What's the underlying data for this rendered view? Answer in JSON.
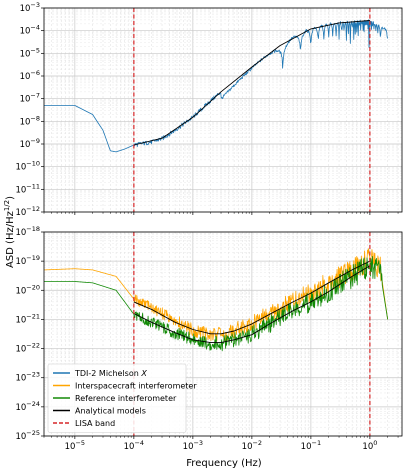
{
  "chart_data": [
    {
      "type": "line",
      "panel": "top",
      "xscale": "log",
      "yscale": "log",
      "xlim": [
        3e-06,
        3.5
      ],
      "ylim": [
        1e-12,
        0.001
      ],
      "grid": true,
      "xtick_values": [
        1e-05,
        0.0001,
        0.001,
        0.01,
        0.1,
        1
      ],
      "ytick_values": [
        1e-12,
        1e-11,
        1e-10,
        1e-09,
        1e-08,
        1e-07,
        1e-06,
        1e-05,
        0.0001,
        0.001
      ],
      "ytick_labels": [
        {
          "base": "10",
          "exp": "−12"
        },
        {
          "base": "10",
          "exp": "−11"
        },
        {
          "base": "10",
          "exp": "−10"
        },
        {
          "base": "10",
          "exp": "−9"
        },
        {
          "base": "10",
          "exp": "−8"
        },
        {
          "base": "10",
          "exp": "−7"
        },
        {
          "base": "10",
          "exp": "−6"
        },
        {
          "base": "10",
          "exp": "−5"
        },
        {
          "base": "10",
          "exp": "−4"
        },
        {
          "base": "10",
          "exp": "−3"
        }
      ],
      "series": [
        {
          "name": "TDI-2 Michelson X",
          "color": "#1f77b4",
          "x": [
            3e-06,
            1e-05,
            2e-05,
            3e-05,
            4e-05,
            5e-05,
            7e-05,
            0.0001,
            0.0002,
            0.0003,
            0.0005,
            0.001,
            0.002,
            0.005,
            0.01,
            0.02,
            0.03,
            0.05,
            0.07,
            0.1,
            0.2,
            0.3,
            0.5,
            0.7,
            1.0,
            1.5,
            2.0
          ],
          "y": [
            5e-08,
            5e-08,
            2e-08,
            4e-09,
            5e-10,
            4.5e-10,
            6e-10,
            9e-10,
            1.2e-09,
            1.7e-09,
            4e-09,
            1.5e-08,
            8e-08,
            6e-07,
            2.5e-06,
            1e-05,
            2.2e-05,
            5e-05,
            8e-05,
            0.00012,
            0.0002,
            0.00022,
            0.00025,
            0.00027,
            0.00028,
            0.00016,
            0.0001
          ]
        },
        {
          "name": "Analytical models",
          "color": "#000000",
          "x": [
            0.0001,
            0.0003,
            0.001,
            0.003,
            0.01,
            0.03,
            0.1,
            0.3,
            1.0
          ],
          "y": [
            9e-10,
            1.8e-09,
            1.5e-08,
            2e-07,
            2.5e-06,
            2.2e-05,
            0.00012,
            0.00022,
            0.00028
          ]
        }
      ],
      "lisa_band": [
        0.0001,
        1.0
      ]
    },
    {
      "type": "line",
      "panel": "bottom",
      "xscale": "log",
      "yscale": "log",
      "xlim": [
        3e-06,
        3.5
      ],
      "ylim": [
        1e-25,
        1e-18
      ],
      "grid": true,
      "xlabel": "Frequency (Hz)",
      "ylabel": "ASD (Hz/Hz^1/2)",
      "xtick_values": [
        1e-05,
        0.0001,
        0.001,
        0.01,
        0.1,
        1
      ],
      "xtick_labels": [
        {
          "base": "10",
          "exp": "−5"
        },
        {
          "base": "10",
          "exp": "−4"
        },
        {
          "base": "10",
          "exp": "−3"
        },
        {
          "base": "10",
          "exp": "−2"
        },
        {
          "base": "10",
          "exp": "−1"
        },
        {
          "base": "10",
          "exp": "0"
        }
      ],
      "ytick_values": [
        1e-25,
        1e-24,
        1e-23,
        1e-22,
        1e-21,
        1e-20,
        1e-19,
        1e-18
      ],
      "ytick_labels": [
        {
          "base": "10",
          "exp": "−25"
        },
        {
          "base": "10",
          "exp": "−24"
        },
        {
          "base": "10",
          "exp": "−23"
        },
        {
          "base": "10",
          "exp": "−22"
        },
        {
          "base": "10",
          "exp": "−21"
        },
        {
          "base": "10",
          "exp": "−20"
        },
        {
          "base": "10",
          "exp": "−19"
        },
        {
          "base": "10",
          "exp": "−18"
        }
      ],
      "series": [
        {
          "name": "Interspacecraft interferometer",
          "color": "#ffa500",
          "x": [
            3e-06,
            1e-05,
            2e-05,
            5e-05,
            0.0001,
            0.0002,
            0.0005,
            0.001,
            0.002,
            0.003,
            0.005,
            0.01,
            0.02,
            0.05,
            0.1,
            0.2,
            0.5,
            1.0,
            1.5,
            2.0
          ],
          "y": [
            5e-20,
            5.5e-20,
            5e-20,
            3e-20,
            5e-21,
            2.5e-21,
            9e-22,
            4.5e-22,
            3e-22,
            3e-22,
            4e-22,
            7e-22,
            1.5e-21,
            4e-21,
            8e-21,
            1.8e-20,
            5e-20,
            1.2e-19,
            6e-20,
            1e-21
          ]
        },
        {
          "name": "Reference interferometer",
          "color": "#138a07",
          "x": [
            3e-06,
            1e-05,
            2e-05,
            5e-05,
            0.0001,
            0.0002,
            0.0005,
            0.001,
            0.002,
            0.003,
            0.005,
            0.01,
            0.02,
            0.05,
            0.1,
            0.2,
            0.5,
            1.0,
            1.5,
            2.0
          ],
          "y": [
            2e-20,
            2e-20,
            1.8e-20,
            1e-20,
            1.5e-21,
            8e-22,
            3.5e-22,
            2e-22,
            1.5e-22,
            1.5e-22,
            2e-22,
            3e-22,
            7e-22,
            2e-21,
            4e-21,
            9e-21,
            3e-20,
            7e-20,
            4e-20,
            1e-21
          ]
        },
        {
          "name": "Analytical models",
          "color": "#000000",
          "x": [
            0.0001,
            0.0002,
            0.0005,
            0.001,
            0.002,
            0.003,
            0.005,
            0.01,
            0.02,
            0.05,
            0.1,
            0.2,
            0.5,
            1.0
          ],
          "y": [
            4e-21,
            2.2e-21,
            8e-22,
            4.5e-22,
            3.2e-22,
            3.2e-22,
            4e-22,
            7e-22,
            1.5e-21,
            4e-21,
            8e-21,
            1.8e-20,
            5e-20,
            1e-19
          ]
        },
        {
          "name": "Analytical models (reference)",
          "color": "#000000",
          "x": [
            0.0001,
            0.0002,
            0.0005,
            0.001,
            0.002,
            0.003,
            0.005,
            0.01,
            0.02,
            0.05,
            0.1,
            0.2,
            0.5,
            1.0
          ],
          "y": [
            1.6e-21,
            8e-22,
            3.5e-22,
            2e-22,
            1.6e-22,
            1.6e-22,
            2e-22,
            3e-22,
            7e-22,
            2e-21,
            4e-21,
            9e-21,
            3e-20,
            7e-20
          ]
        }
      ],
      "lisa_band": [
        0.0001,
        1.0
      ],
      "legend": {
        "placement": "lower-left",
        "entries": [
          {
            "label_pre": "TDI-2 Michelson ",
            "label_italic": "X",
            "color": "#1f77b4",
            "style": "solid"
          },
          {
            "label_pre": "Interspacecraft interferometer",
            "label_italic": "",
            "color": "#ffa500",
            "style": "solid"
          },
          {
            "label_pre": "Reference interferometer",
            "label_italic": "",
            "color": "#138a07",
            "style": "solid"
          },
          {
            "label_pre": "Analytical models",
            "label_italic": "",
            "color": "#000000",
            "style": "solid"
          },
          {
            "label_pre": "LISA band",
            "label_italic": "",
            "color": "#d62728",
            "style": "dashed"
          }
        ]
      }
    }
  ],
  "ylabel_text": {
    "pre": "ASD (Hz/Hz",
    "sup": "1/2",
    "post": ")"
  },
  "xlabel_text": "Frequency (Hz)",
  "lisa_band_color": "#d62728"
}
